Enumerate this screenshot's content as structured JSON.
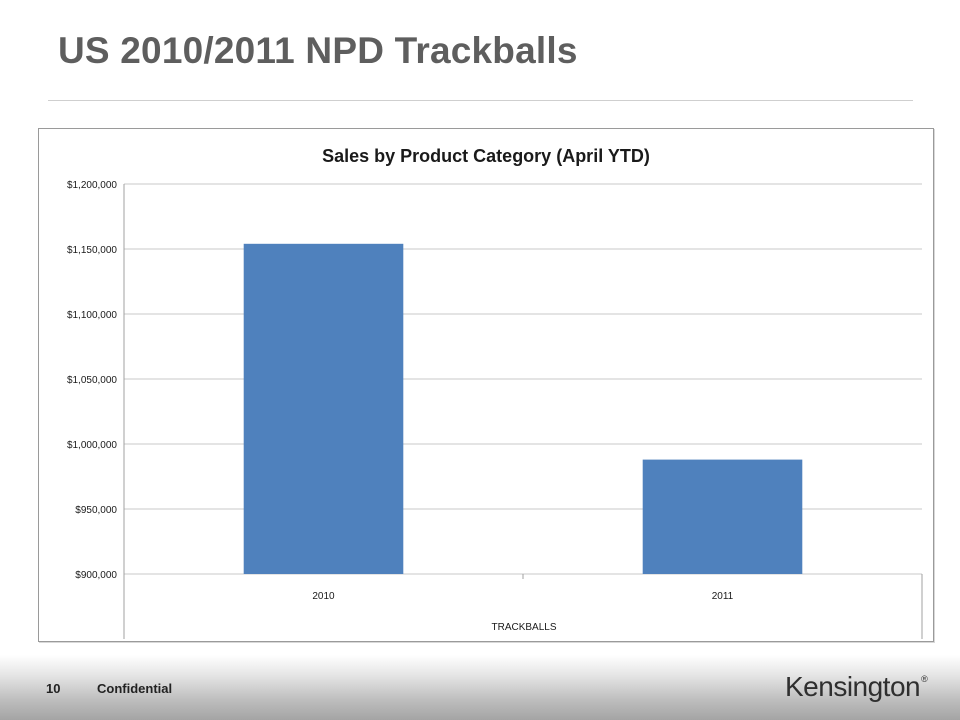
{
  "slide": {
    "title": "US 2010/2011 NPD Trackballs",
    "page_number": "10",
    "footer_label": "Confidential",
    "logo_text": "Kensington",
    "logo_mark": "®"
  },
  "colors": {
    "bar": "#4f81bd",
    "gridline": "#c8c8c8",
    "axis": "#a0a0a0",
    "title_text": "#5e5e5e"
  },
  "chart_data": {
    "type": "bar",
    "title": "Sales by Product Category (April YTD)",
    "xlabel": "TRACKBALLS",
    "ylabel": "",
    "categories": [
      "2010",
      "2011"
    ],
    "values": [
      1154000,
      988000
    ],
    "ylim": [
      900000,
      1200000
    ],
    "y_tick_step": 50000,
    "y_tick_labels": [
      "$900,000",
      "$950,000",
      "$1,000,000",
      "$1,050,000",
      "$1,100,000",
      "$1,150,000",
      "$1,200,000"
    ],
    "grid": true,
    "legend": "none"
  }
}
